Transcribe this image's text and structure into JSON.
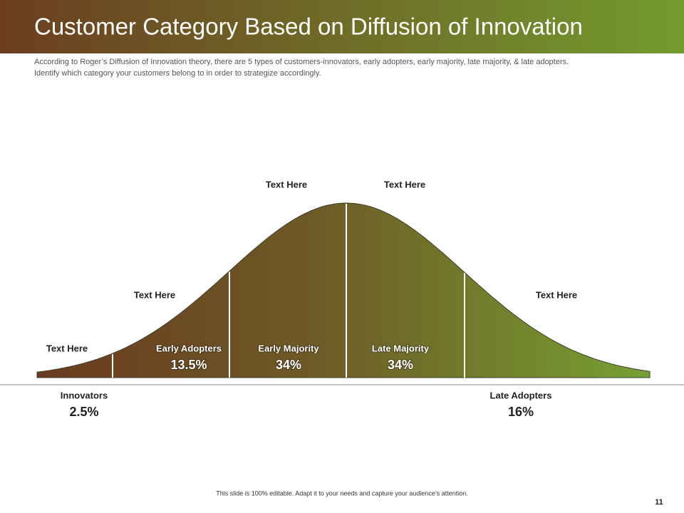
{
  "header": {
    "title": "Customer Category Based on Diffusion of Innovation",
    "description": [
      "According to Roger’s Diffusion of Innovation theory, there are 5 types of customers-innovators, early adopters, early majority, late majority, & late adopters.",
      "Identify which category your customers belong to in order to strategize accordingly."
    ]
  },
  "curve_notes": [
    "Text Here",
    "Text Here",
    "Text Here",
    "Text Here",
    "Text Here"
  ],
  "segments": [
    {
      "label": "Innovators",
      "percent": "2.5%"
    },
    {
      "label": "Early Adopters",
      "percent": "13.5%"
    },
    {
      "label": "Early Majority",
      "percent": "34%"
    },
    {
      "label": "Late Majority",
      "percent": "34%"
    },
    {
      "label": "Late Adopters",
      "percent": "16%"
    }
  ],
  "footer": {
    "note": "This slide is 100% editable. Adapt it to your needs and capture your audience’s attention.",
    "page_number": "11"
  }
}
